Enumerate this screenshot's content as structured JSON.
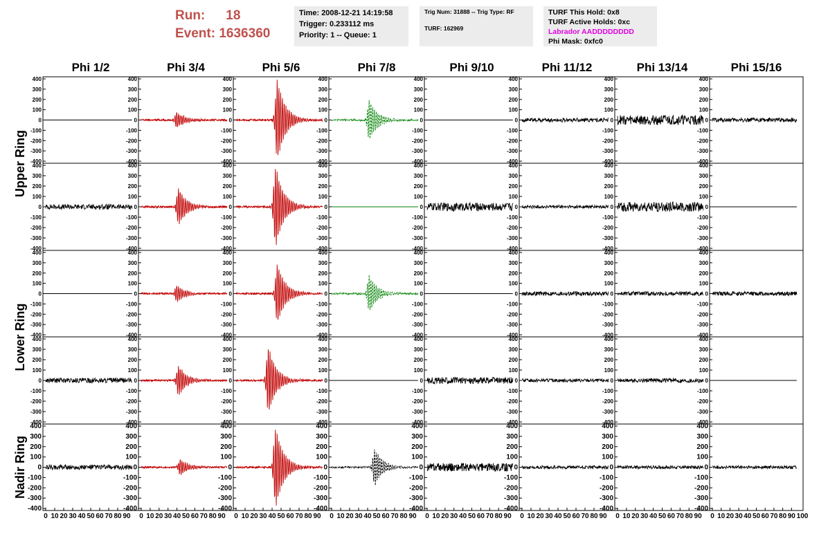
{
  "header": {
    "run_label": "Run:",
    "run_value": "18",
    "event_label": "Event:",
    "event_value": "1636360",
    "time": "Time: 2008-12-21 14:19:58",
    "trigger": "Trigger: 0.233112 ms",
    "priority": "Priority: 1 -- Queue: 1",
    "trig_num": "Trig Num: 31888 -- Trig Type: RF",
    "turf": "TURF: 162969",
    "turf_hold": "TURF This Hold: 0x8",
    "turf_active": "TURF Active Holds: 0xc",
    "labrador": "Labrador AADDDDDDDD",
    "phi_mask": "Phi Mask: 0xfc0"
  },
  "chart_data": {
    "type": "line",
    "title": "",
    "columns": [
      "Phi 1/2",
      "Phi 3/4",
      "Phi 5/6",
      "Phi 7/8",
      "Phi 9/10",
      "Phi 11/12",
      "Phi 13/14",
      "Phi 15/16"
    ],
    "row_labels": [
      {
        "label": "Upper Ring",
        "rows": [
          0,
          1
        ]
      },
      {
        "label": "Lower Ring",
        "rows": [
          2,
          3
        ]
      },
      {
        "label": "Nadir Ring",
        "rows": [
          4
        ]
      }
    ],
    "xlim": [
      0,
      100
    ],
    "ylim": [
      -400,
      400
    ],
    "x_ticks": [
      0,
      10,
      20,
      30,
      40,
      50,
      60,
      70,
      80,
      90
    ],
    "y_ticks": [
      400,
      300,
      200,
      100,
      0,
      -100,
      -200,
      -300,
      -400
    ],
    "y_ticks_nadir": [
      400,
      300,
      200,
      100,
      0,
      -100,
      -200,
      -300,
      -400
    ],
    "colors": {
      "triggered": "#c00000",
      "masked": "#008000",
      "normal": "#000000"
    },
    "panels": [
      [
        "flat",
        "red:80:40",
        "red:400:46",
        "green:200:42",
        "flat",
        "noise:25",
        "noise:60",
        "noise:25"
      ],
      [
        "noise:30",
        "red:180:42",
        "red:400:44",
        "flatgreen",
        "noise:50",
        "noise:20",
        "noise:60",
        "flat"
      ],
      [
        "flat",
        "red:80:40",
        "red:300:46",
        "green:180:42",
        "flat",
        "noise:25",
        "noise:25",
        "noise:25"
      ],
      [
        "noise:30",
        "red:150:42",
        "red:330:36",
        "flat",
        "noise:40",
        "noise:20",
        "noise:25",
        "flat"
      ],
      [
        "noise:30",
        "red:80:44",
        "red:400:44",
        "black:180:48",
        "noise:50",
        "noise:20",
        "noise:20",
        "noise:20"
      ]
    ]
  }
}
